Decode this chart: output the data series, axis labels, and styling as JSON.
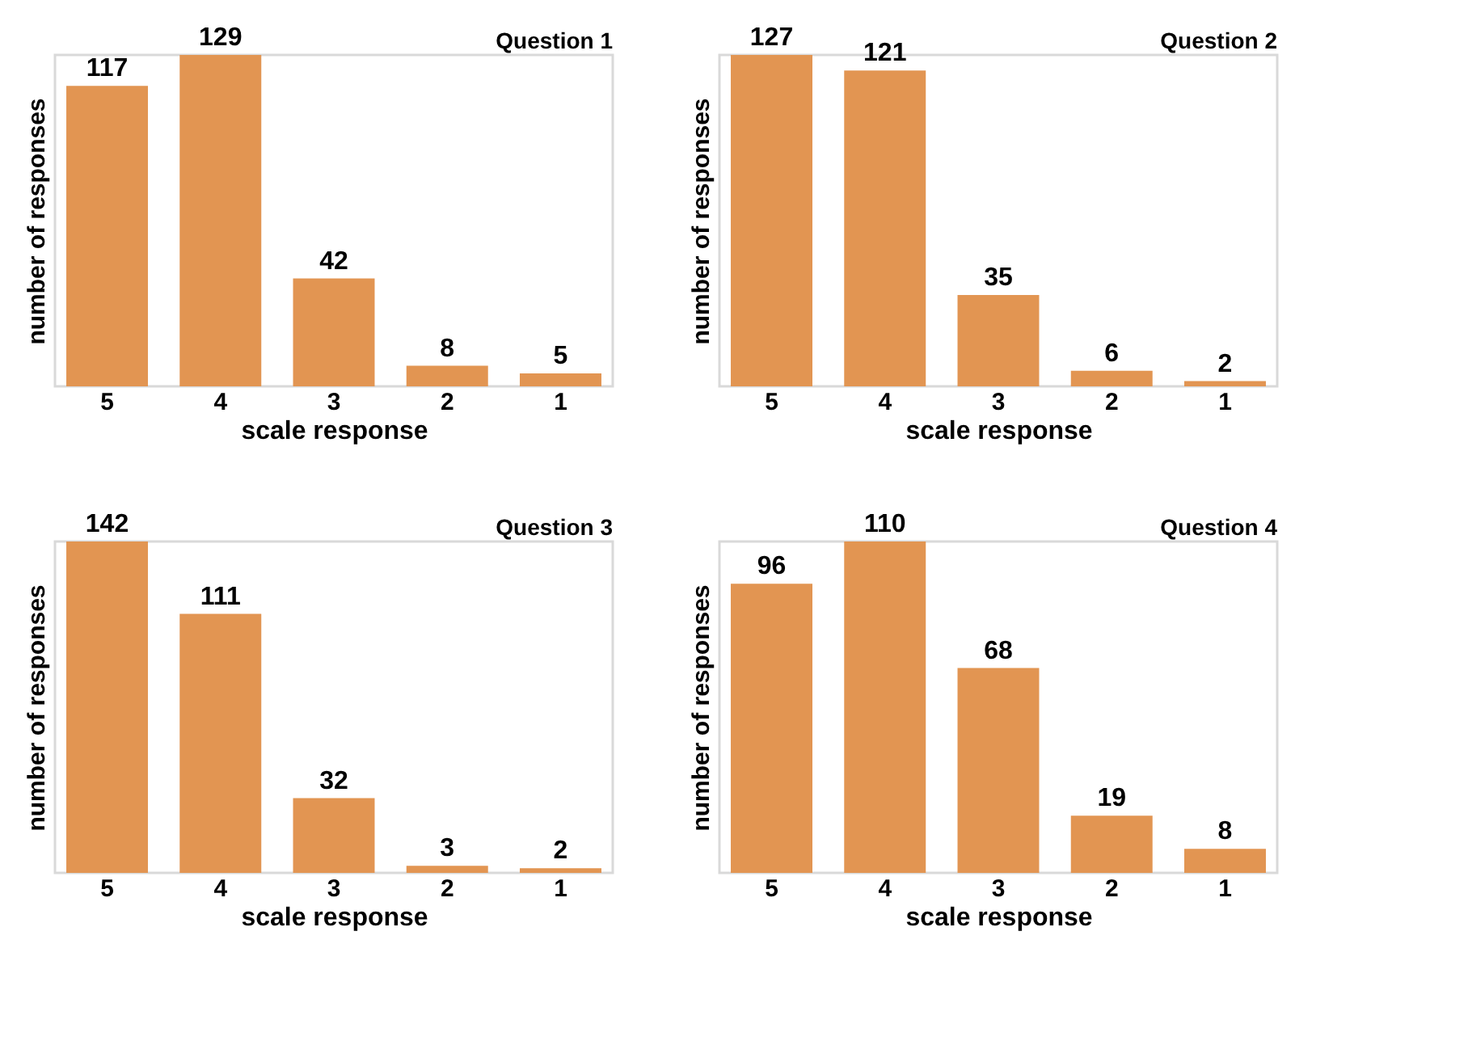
{
  "chart_data": [
    {
      "type": "bar",
      "title": "Question 1",
      "xlabel": "scale response",
      "ylabel": "number of responses",
      "categories": [
        "5",
        "4",
        "3",
        "2",
        "1"
      ],
      "values": [
        117,
        129,
        42,
        8,
        5
      ],
      "color": "#e29552",
      "data_labels": true
    },
    {
      "type": "bar",
      "title": "Question 2",
      "xlabel": "scale response",
      "ylabel": "number of responses",
      "categories": [
        "5",
        "4",
        "3",
        "2",
        "1"
      ],
      "values": [
        127,
        121,
        35,
        6,
        2
      ],
      "color": "#e29552",
      "data_labels": true
    },
    {
      "type": "bar",
      "title": "Question 3",
      "xlabel": "scale response",
      "ylabel": "number of responses",
      "categories": [
        "5",
        "4",
        "3",
        "2",
        "1"
      ],
      "values": [
        142,
        111,
        32,
        3,
        2
      ],
      "color": "#e29552",
      "data_labels": true
    },
    {
      "type": "bar",
      "title": "Question 4",
      "xlabel": "scale response",
      "ylabel": "number of responses",
      "categories": [
        "5",
        "4",
        "3",
        "2",
        "1"
      ],
      "values": [
        96,
        110,
        68,
        19,
        8
      ],
      "color": "#e29552",
      "data_labels": true
    }
  ]
}
